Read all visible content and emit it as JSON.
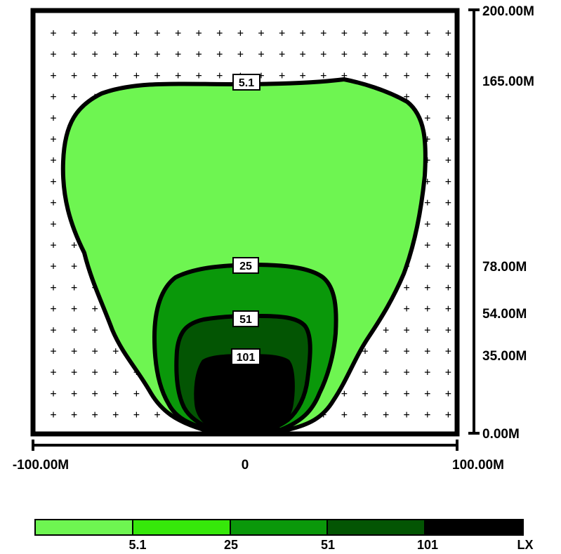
{
  "diagram": {
    "y_axis_labels": [
      "200.00M",
      "165.00M",
      "78.00M",
      "54.00M",
      "35.00M",
      "0.00M"
    ],
    "x_axis_labels": [
      "-100.00M",
      "0",
      "100.00M"
    ],
    "contour_labels": [
      "5.1",
      "25",
      "51",
      "101"
    ],
    "legend": {
      "labels": [
        "5.1",
        "25",
        "51",
        "101"
      ],
      "unit": "LX",
      "colors": [
        "#6ef551",
        "#36e80a",
        "#0a980a",
        "#035503",
        "#000000"
      ]
    },
    "grid_marker": "+"
  }
}
